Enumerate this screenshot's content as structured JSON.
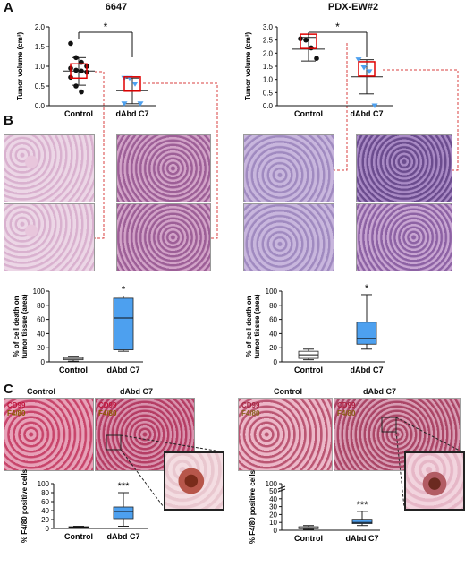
{
  "panels": {
    "a": "A",
    "b": "B",
    "c": "C"
  },
  "titles": {
    "left": "6647",
    "right": "PDX-EW#2"
  },
  "ihc_tags": {
    "cd99": "CD99",
    "f480": "F4/80"
  },
  "ihc_headers": {
    "control": "Control",
    "treated": "dAbd C7"
  },
  "colors": {
    "treated_box": "#4da0ef",
    "highlight": "#e00000",
    "dashed": "#d94040"
  },
  "chart_data": [
    {
      "type": "scatter",
      "id": "a-6647",
      "ylabel": "Tumor volume (cm³)",
      "categories": [
        "Control",
        "dAbd C7"
      ],
      "ylim": [
        0,
        2.0
      ],
      "yticks": [
        "0.0",
        "0.5",
        "1.0",
        "1.5",
        "2.0"
      ],
      "significance": "*",
      "series": [
        {
          "values": [
            1.58,
            1.22,
            1.1,
            1.0,
            0.95,
            0.9,
            0.88,
            0.85,
            0.72,
            0.5,
            0.35
          ],
          "mean": 0.88,
          "sd_low": 0.52,
          "sd_high": 1.22
        },
        {
          "values": [
            0.7,
            0.7,
            0.55,
            0.05,
            0.05
          ],
          "mean": 0.38,
          "sd_low": 0.05,
          "sd_high": 0.7
        }
      ]
    },
    {
      "type": "scatter",
      "id": "a-pdx",
      "ylabel": "Tumor volume (cm³)",
      "categories": [
        "Control",
        "dAbd C7"
      ],
      "ylim": [
        0,
        3.0
      ],
      "yticks": [
        "0.0",
        "0.5",
        "1.0",
        "1.5",
        "2.0",
        "2.5",
        "3.0"
      ],
      "significance": "*",
      "series": [
        {
          "values": [
            2.55,
            2.5,
            2.2,
            1.8
          ],
          "mean": 2.15,
          "sd_low": 1.7,
          "sd_high": 2.6
        },
        {
          "values": [
            1.75,
            1.45,
            1.3,
            0.0
          ],
          "mean": 1.1,
          "sd_low": 0.45,
          "sd_high": 1.75
        }
      ]
    },
    {
      "type": "box",
      "id": "b-6647",
      "ylabel": "% of cell death on tumor tissue (area)",
      "categories": [
        "Control",
        "dAbd C7"
      ],
      "ylim": [
        0,
        100
      ],
      "yticks": [
        "0",
        "20",
        "40",
        "60",
        "80",
        "100"
      ],
      "significance": "*",
      "boxes": [
        {
          "min": 1,
          "q1": 3,
          "median": 5,
          "q3": 7,
          "max": 8
        },
        {
          "min": 15,
          "q1": 17,
          "median": 62,
          "q3": 90,
          "max": 93
        }
      ]
    },
    {
      "type": "box",
      "id": "b-pdx",
      "ylabel": "% of cell death on tumor tissue (area)",
      "categories": [
        "Control",
        "dAbd C7"
      ],
      "ylim": [
        0,
        100
      ],
      "yticks": [
        "0",
        "20",
        "40",
        "60",
        "80",
        "100"
      ],
      "significance": "*",
      "boxes": [
        {
          "min": 3,
          "q1": 5,
          "median": 10,
          "q3": 15,
          "max": 18
        },
        {
          "min": 18,
          "q1": 25,
          "median": 33,
          "q3": 56,
          "max": 95
        }
      ]
    },
    {
      "type": "box",
      "id": "c-6647",
      "ylabel": "% F4/80 positive cells",
      "categories": [
        "Control",
        "dAbd C7"
      ],
      "ylim": [
        0,
        100
      ],
      "yticks": [
        "0",
        "20",
        "40",
        "60",
        "80",
        "100"
      ],
      "significance": "***",
      "boxes": [
        {
          "min": 1,
          "q1": 2,
          "median": 3,
          "q3": 4,
          "max": 5
        },
        {
          "min": 5,
          "q1": 22,
          "median": 38,
          "q3": 48,
          "max": 80
        }
      ]
    },
    {
      "type": "box",
      "id": "c-pdx",
      "ylabel": "% F4/80 positive cells",
      "categories": [
        "Control",
        "dAbd C7"
      ],
      "ylim": [
        0,
        100
      ],
      "yticks": [
        "0",
        "10",
        "20",
        "30",
        "40",
        "50",
        "100"
      ],
      "broken_axis": true,
      "significance": "***",
      "boxes": [
        {
          "min": 1,
          "q1": 2,
          "median": 3,
          "q3": 4.5,
          "max": 6
        },
        {
          "min": 6,
          "q1": 8.5,
          "median": 10,
          "q3": 14,
          "max": 24
        }
      ]
    }
  ]
}
